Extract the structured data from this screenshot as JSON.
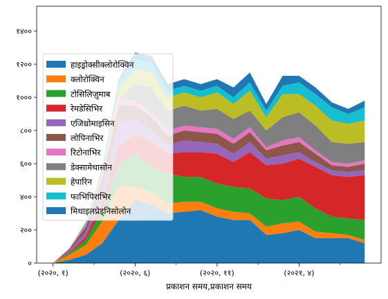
{
  "chart_data": {
    "type": "area",
    "stacked": true,
    "xlabel": "प्रकाशन समय,प्रकाशन समय",
    "ylabel": "",
    "x_tick_labels": [
      "(२०२०, १)",
      "(२०२०, ६)",
      "(२०२०, ११)",
      "(२०२१, ४)"
    ],
    "x_tick_months": [
      0,
      5,
      10,
      15
    ],
    "x_minor_tick_months": [
      0,
      2.5,
      5,
      7.5,
      10,
      12.5,
      15,
      17.5
    ],
    "x": [
      0,
      1,
      2,
      3,
      4,
      5,
      6,
      7,
      8,
      9,
      10,
      11,
      12,
      13,
      14,
      15,
      16,
      17,
      18,
      19
    ],
    "xlim": [
      -1,
      20
    ],
    "y_ticks": [
      0,
      200,
      400,
      600,
      800,
      1000,
      1200,
      1400
    ],
    "y_tick_labels": [
      "०",
      "२००",
      "४००",
      "६००",
      "८००",
      "१०००",
      "१२००",
      "१४००"
    ],
    "ylim": [
      0,
      1550
    ],
    "legend_position": "center-left",
    "series": [
      {
        "name": "हाइड्रोक्सीक्लोरोक्विन",
        "color": "#1f77b4",
        "values": [
          0,
          20,
          50,
          120,
          260,
          380,
          350,
          300,
          310,
          320,
          280,
          260,
          260,
          170,
          180,
          200,
          150,
          150,
          150,
          120
        ]
      },
      {
        "name": "क्लोरोक्विन",
        "color": "#ff7f0e",
        "values": [
          0,
          30,
          60,
          130,
          200,
          80,
          80,
          60,
          60,
          50,
          50,
          50,
          40,
          50,
          60,
          50,
          40,
          30,
          20,
          20
        ]
      },
      {
        "name": "टोसिलिज़ुमाब",
        "color": "#2ca02c",
        "values": [
          0,
          10,
          30,
          70,
          140,
          200,
          150,
          180,
          150,
          150,
          150,
          150,
          150,
          170,
          140,
          150,
          140,
          100,
          100,
          120
        ]
      },
      {
        "name": "रेमडेसिभिर",
        "color": "#d62728",
        "values": [
          0,
          5,
          20,
          50,
          100,
          120,
          150,
          120,
          150,
          150,
          180,
          150,
          220,
          200,
          220,
          230,
          250,
          250,
          250,
          270
        ]
      },
      {
        "name": "एजिथ्रोमाइसिन",
        "color": "#9467bd",
        "values": [
          0,
          10,
          30,
          80,
          150,
          90,
          70,
          50,
          70,
          60,
          60,
          50,
          60,
          40,
          50,
          40,
          30,
          30,
          30,
          30
        ]
      },
      {
        "name": "लोपिनाभिर",
        "color": "#8c564b",
        "values": [
          0,
          10,
          30,
          60,
          100,
          80,
          80,
          60,
          60,
          60,
          60,
          60,
          60,
          50,
          60,
          60,
          50,
          30,
          30,
          40
        ]
      },
      {
        "name": "रिटोनाभिर",
        "color": "#e377c2",
        "values": [
          0,
          5,
          10,
          20,
          40,
          30,
          30,
          30,
          30,
          30,
          30,
          30,
          30,
          20,
          30,
          30,
          20,
          20,
          20,
          20
        ]
      },
      {
        "name": "डेक्सामेथासोन",
        "color": "#7f7f7f",
        "values": [
          0,
          0,
          0,
          0,
          0,
          100,
          150,
          120,
          120,
          100,
          120,
          120,
          100,
          100,
          140,
          150,
          150,
          120,
          120,
          110
        ]
      },
      {
        "name": "हेपारिन",
        "color": "#bcbd22",
        "values": [
          0,
          0,
          5,
          20,
          60,
          90,
          90,
          80,
          80,
          80,
          100,
          90,
          120,
          80,
          140,
          110,
          120,
          130,
          120,
          130
        ]
      },
      {
        "name": "फाभिपिराभिर",
        "color": "#17becf",
        "values": [
          0,
          0,
          5,
          20,
          40,
          60,
          60,
          40,
          40,
          40,
          40,
          40,
          50,
          40,
          50,
          70,
          70,
          80,
          60,
          80
        ]
      },
      {
        "name": "मिथाइलप्रेड्निसोलोन",
        "color": "#1f77b4",
        "values": [
          0,
          0,
          5,
          10,
          20,
          40,
          40,
          40,
          40,
          40,
          40,
          60,
          60,
          40,
          60,
          40,
          40,
          30,
          30,
          40
        ]
      }
    ]
  }
}
